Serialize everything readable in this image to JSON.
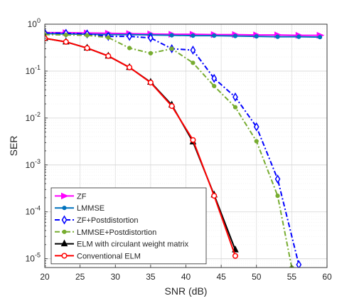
{
  "chart_data": {
    "type": "line",
    "xlabel": "SNR (dB)",
    "ylabel": "SER",
    "xlim": [
      20,
      60
    ],
    "ylim": [
      6.5e-06,
      1
    ],
    "yscale": "log",
    "grid": true,
    "legend_position": "lower-left",
    "x_ticks": [
      "20",
      "25",
      "30",
      "35",
      "40",
      "45",
      "50",
      "55",
      "60"
    ],
    "y_ticks": [
      {
        "base": "10",
        "exp": "0"
      },
      {
        "base": "10",
        "exp": "-1"
      },
      {
        "base": "10",
        "exp": "-2"
      },
      {
        "base": "10",
        "exp": "-3"
      },
      {
        "base": "10",
        "exp": "-4"
      },
      {
        "base": "10",
        "exp": "-5"
      }
    ],
    "series": [
      {
        "name": "ZF",
        "color": "#ff00ff",
        "dash": "solid",
        "marker": "triangle-right",
        "x": [
          20,
          23,
          26,
          29,
          32,
          35,
          38,
          41,
          44,
          47,
          50,
          53,
          56,
          59
        ],
        "y": [
          0.66,
          0.66,
          0.65,
          0.64,
          0.63,
          0.62,
          0.61,
          0.61,
          0.6,
          0.6,
          0.59,
          0.59,
          0.58,
          0.58
        ]
      },
      {
        "name": "LMMSE",
        "color": "#0072bd",
        "dash": "solid",
        "marker": "circle-filled",
        "x": [
          20,
          23,
          26,
          29,
          32,
          35,
          38,
          41,
          44,
          47,
          50,
          53,
          56,
          59
        ],
        "y": [
          0.63,
          0.62,
          0.61,
          0.6,
          0.6,
          0.59,
          0.58,
          0.57,
          0.57,
          0.56,
          0.55,
          0.54,
          0.54,
          0.53
        ]
      },
      {
        "name": "ZF+Postdistortion",
        "color": "#0000ff",
        "dash": "dashdot",
        "marker": "diamond",
        "x": [
          20,
          23,
          26,
          29,
          32,
          35,
          38,
          41,
          44,
          47,
          50,
          53,
          56
        ],
        "y": [
          0.65,
          0.64,
          0.62,
          0.55,
          0.55,
          0.51,
          0.3,
          0.28,
          0.07,
          0.028,
          0.0065,
          0.0005,
          7.5e-06
        ]
      },
      {
        "name": "LMMSE+Postdistortion",
        "color": "#77ac30",
        "dash": "dashdot",
        "marker": "circle-filled",
        "x": [
          20,
          23,
          26,
          29,
          32,
          35,
          38,
          41,
          44,
          47,
          50,
          53,
          55
        ],
        "y": [
          0.6,
          0.59,
          0.58,
          0.52,
          0.31,
          0.24,
          0.3,
          0.15,
          0.048,
          0.017,
          0.0032,
          0.00022,
          6.5e-06
        ]
      },
      {
        "name": "ELM with circulant weight matrix",
        "color": "#000000",
        "dash": "solid",
        "marker": "triangle-up",
        "x": [
          20,
          23,
          26,
          29,
          32,
          35,
          38,
          41,
          44,
          47
        ],
        "y": [
          0.5,
          0.42,
          0.31,
          0.21,
          0.12,
          0.058,
          0.019,
          0.0031,
          0.00023,
          1.55e-05
        ]
      },
      {
        "name": "Conventional ELM",
        "color": "#ff0000",
        "dash": "solid",
        "marker": "circle-open",
        "x": [
          20,
          23,
          26,
          29,
          32,
          35,
          38,
          41,
          44,
          47
        ],
        "y": [
          0.5,
          0.42,
          0.31,
          0.21,
          0.12,
          0.057,
          0.018,
          0.0034,
          0.00022,
          1.15e-05
        ]
      }
    ]
  }
}
